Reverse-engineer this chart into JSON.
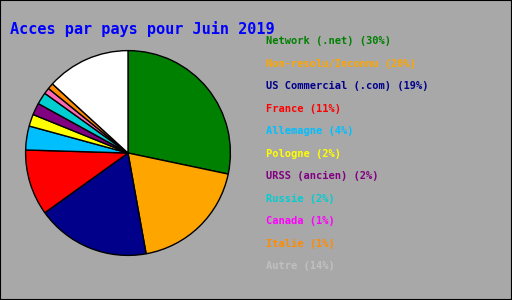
{
  "title": "Acces par pays pour Juin 2019",
  "labels": [
    "Network (.net)",
    "Non-resolu/Inconnu",
    "US Commercial (.com)",
    "France",
    "Allemagne",
    "Pologne",
    "URSS (ancien)",
    "Russie",
    "Canada",
    "Italie",
    "Autre"
  ],
  "percentages": [
    30,
    20,
    19,
    11,
    4,
    2,
    2,
    2,
    1,
    1,
    14
  ],
  "colors": [
    "#008000",
    "#FFA500",
    "#00008B",
    "#FF0000",
    "#00BFFF",
    "#FFFF00",
    "#800080",
    "#00CED1",
    "#FF69B4",
    "#FF8C00",
    "#FFFFFF"
  ],
  "legend_colors": [
    "#008000",
    "#FFA500",
    "#00008B",
    "#FF0000",
    "#00BFFF",
    "#FFFF00",
    "#800080",
    "#00CED1",
    "#FF00FF",
    "#FF8C00",
    "#C0C0C0"
  ],
  "legend_labels": [
    "Network (.net) (30%)",
    "Non-resolu/Inconnu (20%)",
    "US Commercial (.com) (19%)",
    "France (11%)",
    "Allemagne (4%)",
    "Pologne (2%)",
    "URSS (ancien) (2%)",
    "Russie (2%)",
    "Canada (1%)",
    "Italie (1%)",
    "Autre (14%)"
  ],
  "legend_text_colors": [
    "#008000",
    "#FFA500",
    "#00008B",
    "#FF0000",
    "#00BFFF",
    "#FFFF00",
    "#800080",
    "#00CED1",
    "#FF00FF",
    "#FF8C00",
    "#C0C0C0"
  ],
  "bg_color": "#A8A8A8",
  "title_color": "#0000FF",
  "title_fontsize": 11
}
